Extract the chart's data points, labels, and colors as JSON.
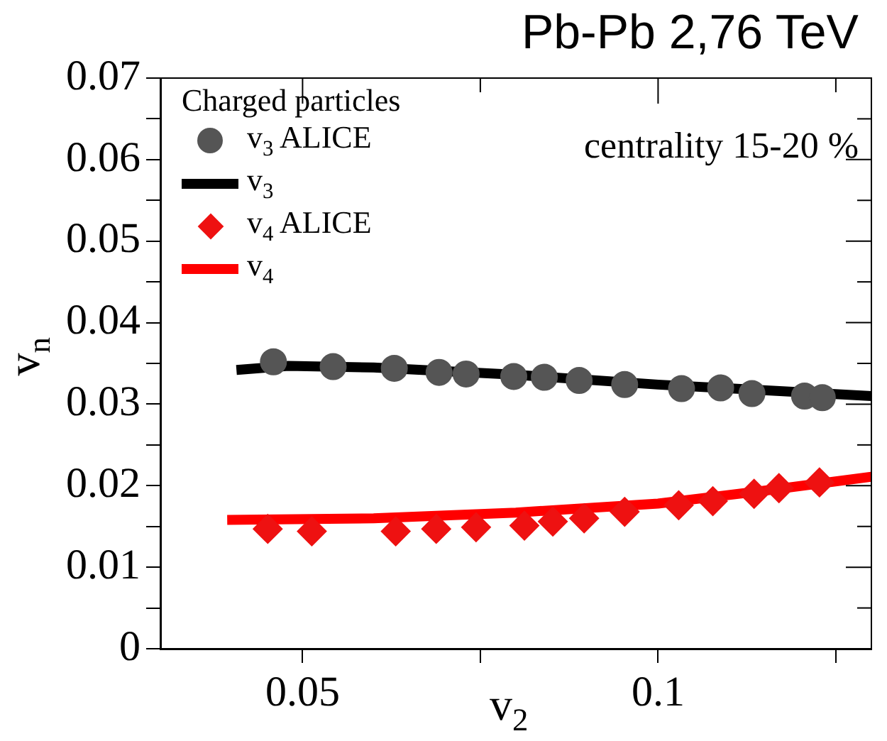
{
  "chart_data": {
    "type": "scatter",
    "title": "Pb-Pb 2,76 TeV",
    "xlabel": "v$_{2}$",
    "ylabel": "v$_{n}$",
    "legend_title": "Charged particles",
    "legend": "top left",
    "annotations": [
      "centrality 15-20 %"
    ],
    "xlim": [
      0.03,
      0.13
    ],
    "xticks": [
      0.05,
      {
        "value": 0.075,
        "label": null
      },
      0.1,
      {
        "value": 0.125,
        "label": null
      }
    ],
    "ylim": [
      0,
      0.07
    ],
    "yticks": [
      0,
      {
        "value": 0.005,
        "label": null
      },
      0.01,
      {
        "value": 0.015,
        "label": null
      },
      0.02,
      {
        "value": 0.025,
        "label": null
      },
      0.03,
      {
        "value": 0.035,
        "label": null
      },
      0.04,
      {
        "value": 0.045,
        "label": null
      },
      0.05,
      {
        "value": 0.055,
        "label": null
      },
      0.06,
      {
        "value": 0.065,
        "label": null
      },
      0.07
    ],
    "grid": false,
    "series": [
      {
        "name": "v$_{3}$ ALICE",
        "type": "scatter",
        "marker": "circle",
        "color": "#555555",
        "x": [
          0.0459,
          0.0543,
          0.0629,
          0.0692,
          0.073,
          0.0797,
          0.084,
          0.0889,
          0.0953,
          0.1033,
          0.1088,
          0.1132,
          0.1206,
          0.1231
        ],
        "values": [
          0.0352,
          0.0346,
          0.0344,
          0.0339,
          0.0337,
          0.0334,
          0.0333,
          0.0329,
          0.0324,
          0.0319,
          0.032,
          0.0313,
          0.031,
          0.0308
        ]
      },
      {
        "name": "v$_{3}$",
        "type": "line",
        "marker": "none",
        "line_style": "solid",
        "color": "#000000",
        "x": [
          0.0407,
          0.048,
          0.06,
          0.08,
          0.1,
          0.13
        ],
        "values": [
          0.0342,
          0.0347,
          0.0345,
          0.0336,
          0.0324,
          0.031
        ]
      },
      {
        "name": "v$_{4}$ ALICE",
        "type": "scatter",
        "marker": "diamond",
        "color": "#ee1111",
        "x": [
          0.0451,
          0.0513,
          0.0631,
          0.0688,
          0.0744,
          0.0812,
          0.0852,
          0.0896,
          0.0953,
          0.1029,
          0.1077,
          0.1135,
          0.117,
          0.1227
        ],
        "values": [
          0.0147,
          0.0144,
          0.0144,
          0.0147,
          0.0149,
          0.0151,
          0.0156,
          0.016,
          0.0168,
          0.0176,
          0.0181,
          0.019,
          0.0197,
          0.0204
        ]
      },
      {
        "name": "v$_{4}$",
        "type": "line",
        "marker": "none",
        "line_style": "solid",
        "color": "#ff0000",
        "x": [
          0.0394,
          0.06,
          0.08,
          0.1,
          0.115,
          0.13
        ],
        "values": [
          0.0158,
          0.016,
          0.0167,
          0.0178,
          0.0194,
          0.0211
        ]
      }
    ]
  }
}
